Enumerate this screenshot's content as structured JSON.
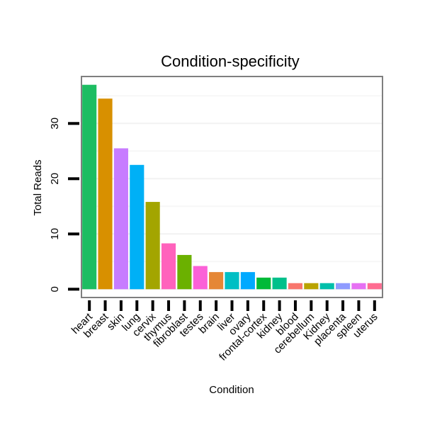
{
  "chart_data": {
    "type": "bar",
    "title": "Condition-specificity",
    "xlabel": "Condition",
    "ylabel": "Total Reads",
    "ylim": [
      -1.5,
      38.5
    ],
    "yticks": [
      0,
      10,
      20,
      30
    ],
    "yticklabels": [
      "0",
      "10",
      "20",
      "30"
    ],
    "grid": true,
    "categories": [
      "heart",
      "breast",
      "skin",
      "lung",
      "cervix",
      "thymus",
      "fibroblast",
      "testes",
      "brain",
      "liver",
      "ovary",
      "frontal-cortex",
      "kidney",
      "blood",
      "cerebellum",
      "Kidney",
      "placenta",
      "spleen",
      "uterus"
    ],
    "values": [
      37,
      34.5,
      25.5,
      22.5,
      15.8,
      8.3,
      6.2,
      4.2,
      3.1,
      3.1,
      3.1,
      2.1,
      2.1,
      1.1,
      1.1,
      1.1,
      1.1,
      1.1,
      1.1
    ],
    "colors": [
      "#1dbd62",
      "#d89000",
      "#c77cff",
      "#00b0f6",
      "#a3a500",
      "#ff62bc",
      "#6bb100",
      "#fb61d7",
      "#e58736",
      "#00bfc4",
      "#00a9ff",
      "#00ba38",
      "#00c08b",
      "#f8766d",
      "#b9a300",
      "#00bfaa",
      "#8f9bff",
      "#e670f3",
      "#ff6c91"
    ]
  }
}
